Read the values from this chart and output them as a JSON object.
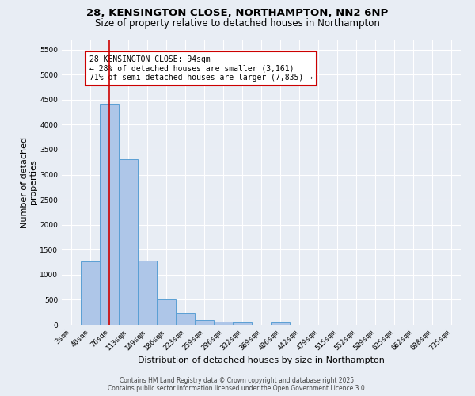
{
  "title_line1": "28, KENSINGTON CLOSE, NORTHAMPTON, NN2 6NP",
  "title_line2": "Size of property relative to detached houses in Northampton",
  "xlabel": "Distribution of detached houses by size in Northampton",
  "ylabel": "Number of detached\nproperties",
  "categories": [
    "3sqm",
    "40sqm",
    "76sqm",
    "113sqm",
    "149sqm",
    "186sqm",
    "223sqm",
    "259sqm",
    "296sqm",
    "332sqm",
    "369sqm",
    "406sqm",
    "442sqm",
    "479sqm",
    "515sqm",
    "552sqm",
    "589sqm",
    "625sqm",
    "662sqm",
    "698sqm",
    "735sqm"
  ],
  "bar_heights": [
    0,
    1260,
    4420,
    3310,
    1290,
    500,
    240,
    90,
    60,
    50,
    0,
    50,
    0,
    0,
    0,
    0,
    0,
    0,
    0,
    0,
    0
  ],
  "bar_color": "#aec6e8",
  "bar_edge_color": "#5a9fd4",
  "ylim": [
    0,
    5700
  ],
  "yticks": [
    0,
    500,
    1000,
    1500,
    2000,
    2500,
    3000,
    3500,
    4000,
    4500,
    5000,
    5500
  ],
  "vline_color": "#cc0000",
  "annotation_text": "28 KENSINGTON CLOSE: 94sqm\n← 28% of detached houses are smaller (3,161)\n71% of semi-detached houses are larger (7,835) →",
  "annotation_box_color": "#ffffff",
  "annotation_box_edge_color": "#cc0000",
  "annotation_fontsize": 7.0,
  "bg_color": "#e8edf4",
  "grid_color": "#ffffff",
  "title_fontsize": 9.5,
  "subtitle_fontsize": 8.5,
  "xlabel_fontsize": 8,
  "ylabel_fontsize": 8,
  "tick_fontsize": 6.5,
  "footer_line1": "Contains HM Land Registry data © Crown copyright and database right 2025.",
  "footer_line2": "Contains public sector information licensed under the Open Government Licence 3.0."
}
